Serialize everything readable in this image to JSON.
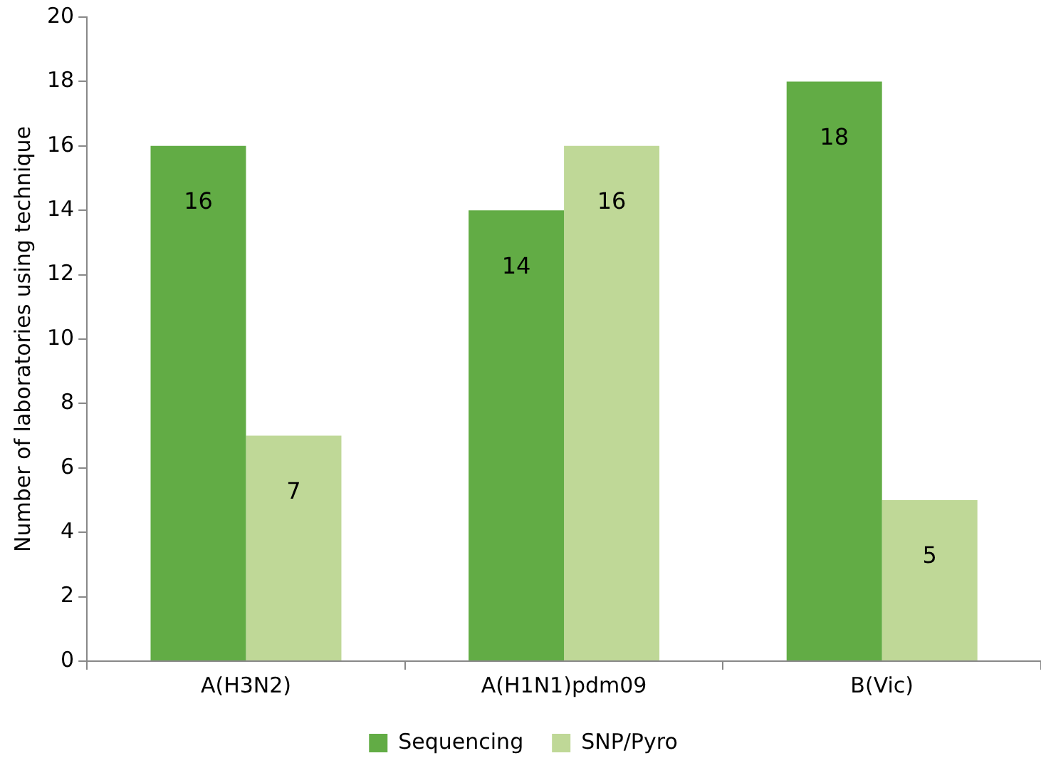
{
  "chart_data": {
    "type": "bar",
    "ylabel": "Number of laboratories using technique",
    "categories": [
      "A(H3N2)",
      "A(H1N1)pdm09",
      "B(Vic)"
    ],
    "series": [
      {
        "name": "Sequencing",
        "color": "#62ac45",
        "values": [
          16,
          14,
          18
        ]
      },
      {
        "name": "SNP/Pyro",
        "color": "#bfd897",
        "values": [
          7,
          16,
          5
        ]
      }
    ],
    "ylim": [
      0,
      20
    ],
    "yticks": [
      0,
      2,
      4,
      6,
      8,
      10,
      12,
      14,
      16,
      18,
      20
    ],
    "grid": false,
    "legend": "bottom",
    "data_labels": true
  }
}
